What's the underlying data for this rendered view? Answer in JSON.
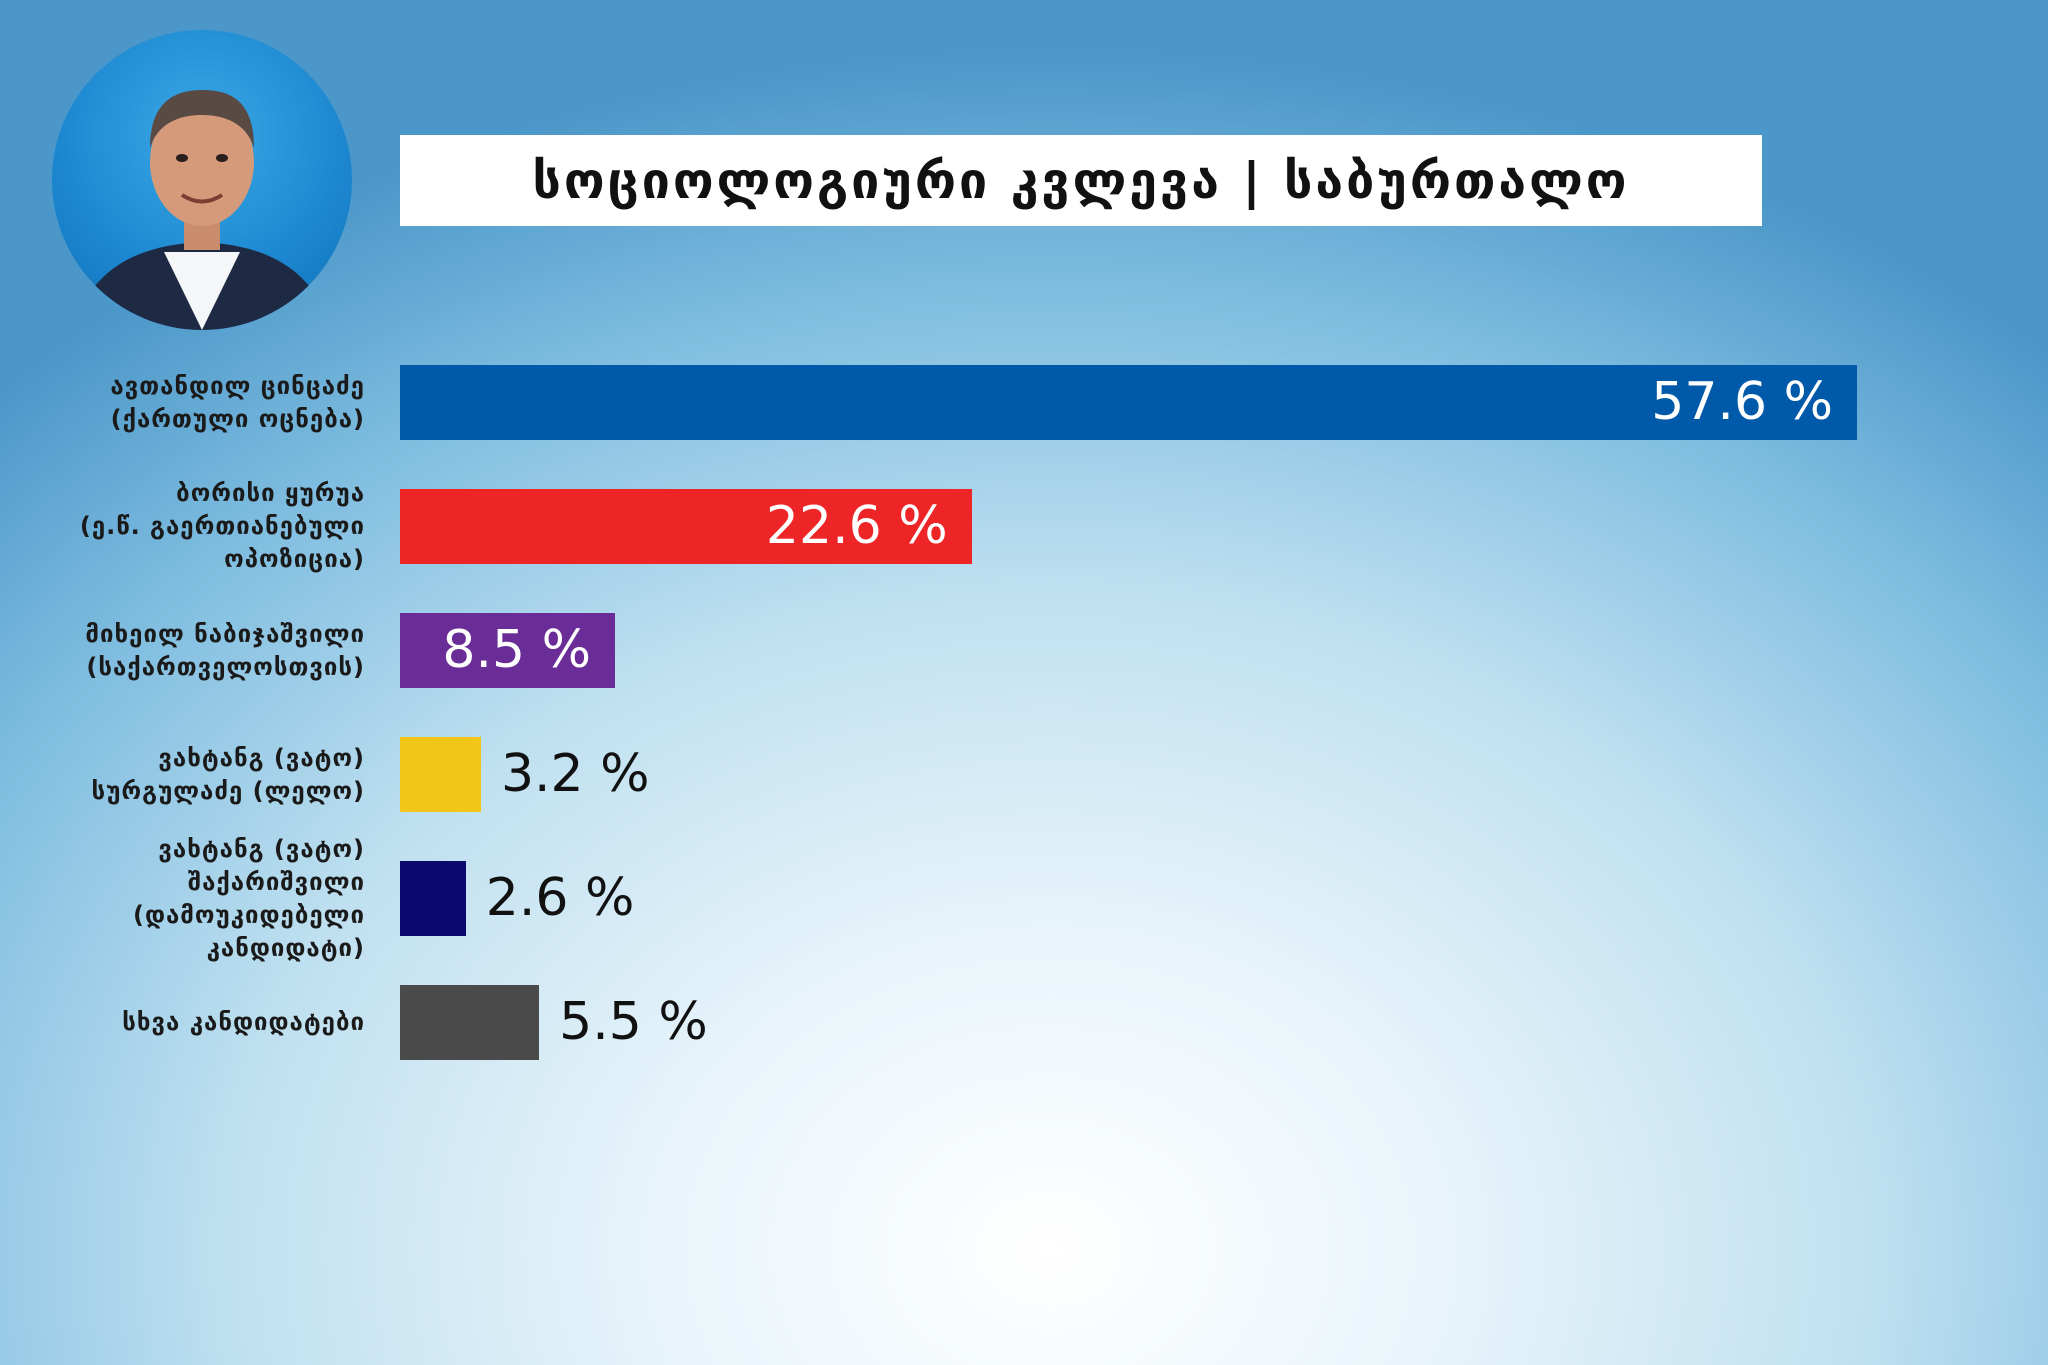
{
  "title": "სოციოლოგიური კვლევა | საბურთალო",
  "chart_data": {
    "type": "bar",
    "orientation": "horizontal",
    "title": "სოციოლოგიური კვლევა | საბურთალო",
    "categories": [
      [
        "ავთანდილ ცინცაძე",
        "(ქართული ოცნება)"
      ],
      [
        "ბორისი ყურუა",
        "(ე.წ. გაერთიანებული",
        "ოპოზიცია)"
      ],
      [
        "მიხეილ ნაბიჯაშვილი",
        "(საქართველოსთვის)"
      ],
      [
        "ვახტანგ (ვატო)",
        "სურგულაძე (ლელო)"
      ],
      [
        "ვახტანგ (ვატო)",
        "შაქარიშვილი",
        "(დამოუკიდებელი",
        "კანდიდატი)"
      ],
      [
        "სხვა კანდიდატები"
      ]
    ],
    "values": [
      57.6,
      22.6,
      8.5,
      3.2,
      2.6,
      5.5
    ],
    "value_labels": [
      "57.6 %",
      "22.6 %",
      "8.5 %",
      "3.2 %",
      "2.6 %",
      "5.5 %"
    ],
    "colors": [
      "#0159a9",
      "#ee2527",
      "#6a2d97",
      "#f2c618",
      "#0a0a6e",
      "#4a4a4a"
    ],
    "value_label_position": [
      "inside",
      "inside",
      "inside",
      "outside",
      "outside",
      "outside"
    ],
    "xlim": [
      0,
      57.6
    ],
    "grid": false,
    "legend": "none"
  }
}
